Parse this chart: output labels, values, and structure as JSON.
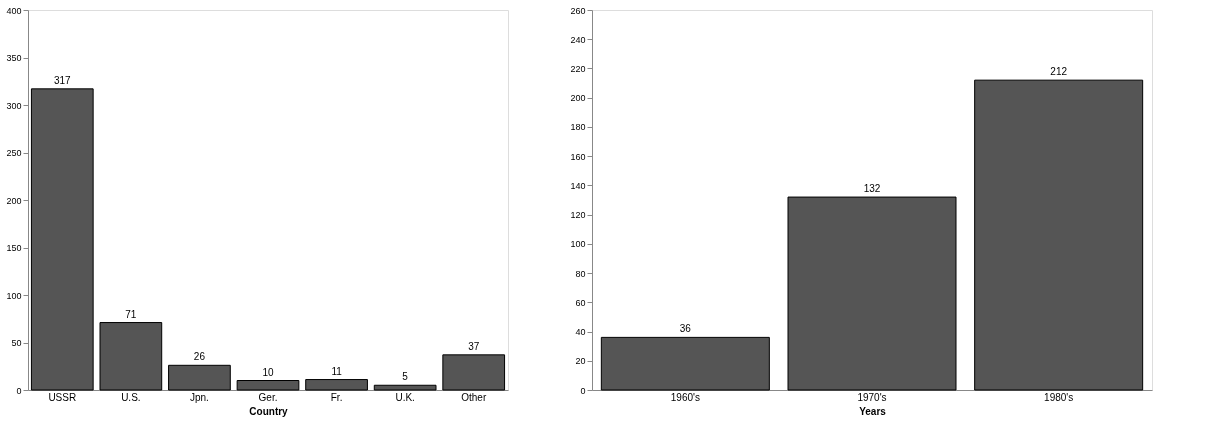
{
  "chart_data": [
    {
      "type": "bar",
      "xlabel": "Country",
      "categories": [
        "USSR",
        "U.S.",
        "Jpn.",
        "Ger.",
        "Fr.",
        "U.K.",
        "Other"
      ],
      "values": [
        317,
        71,
        26,
        10,
        11,
        5,
        37
      ],
      "color": "#555555",
      "ylim": [
        0,
        400
      ],
      "yticks": [
        0,
        50,
        100,
        150,
        200,
        250,
        300,
        350,
        400
      ],
      "data_labels": true,
      "grid": false
    },
    {
      "type": "bar",
      "xlabel": "Years",
      "categories": [
        "1960's",
        "1970's",
        "1980's"
      ],
      "values": [
        36,
        132,
        212
      ],
      "color": "#555555",
      "ylim": [
        0,
        260
      ],
      "yticks": [
        0,
        20,
        40,
        60,
        80,
        100,
        120,
        140,
        160,
        180,
        200,
        220,
        240,
        260
      ],
      "data_labels": true,
      "grid": false
    }
  ]
}
